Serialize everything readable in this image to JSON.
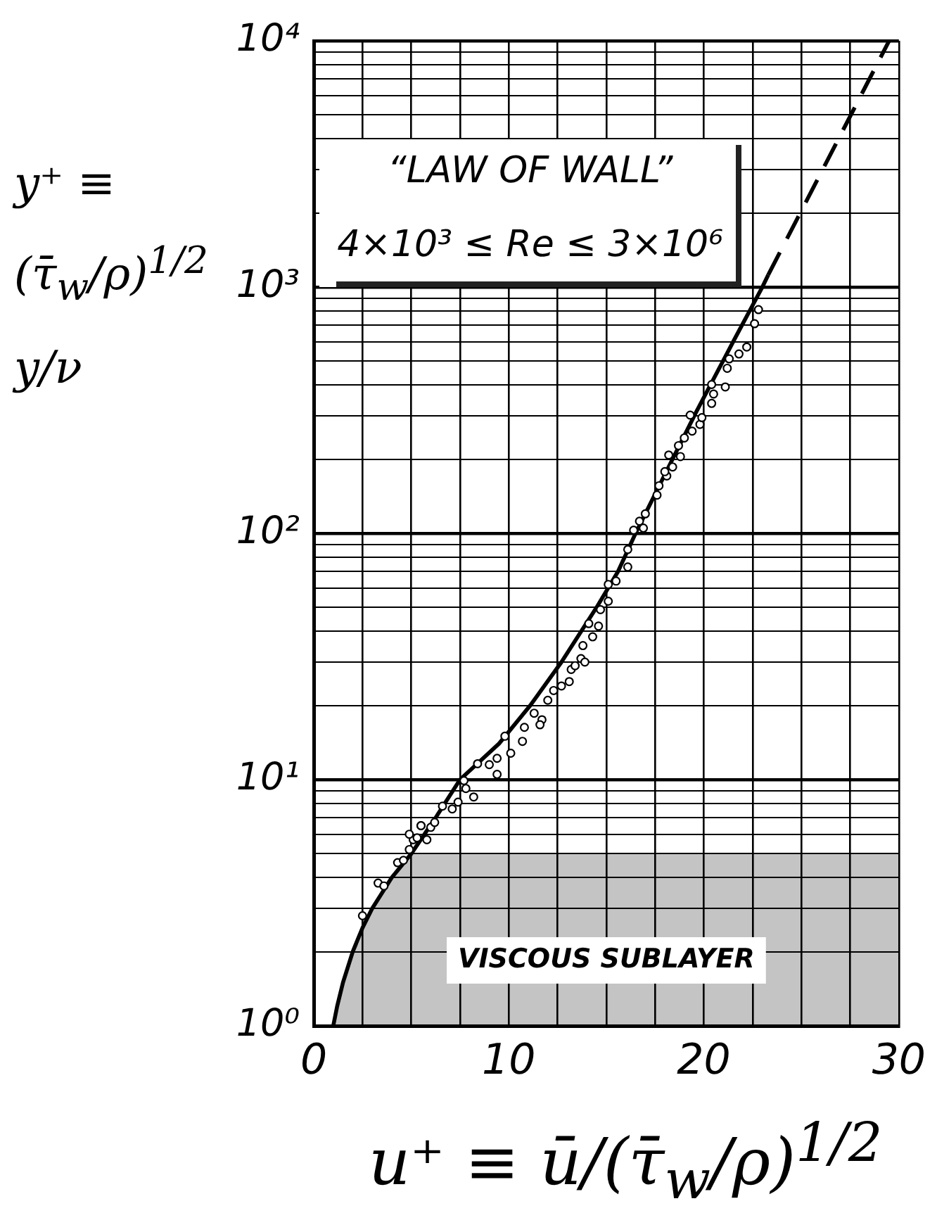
{
  "chart_data": {
    "type": "scatter",
    "ylabel": "y⁺ ≡ (τ̄$_{w}$/ρ)$^{1/2}$ y/ν",
    "xlabel": "u⁺ ≡ ū/(τ̄$_{w}$/ρ)$^{1/2}$",
    "annotations": [
      "“LAW OF WALL”",
      "4×10³ ≤ Re ≤ 3×10⁶"
    ],
    "xlim": [
      0,
      30
    ],
    "xticks": [
      0,
      {
        "value": 2.5,
        "label": null
      },
      {
        "value": 5,
        "label": null
      },
      {
        "value": 7.5,
        "label": null
      },
      10,
      {
        "value": 12.5,
        "label": null
      },
      {
        "value": 15,
        "label": null
      },
      {
        "value": 17.5,
        "label": null
      },
      20,
      {
        "value": 22.5,
        "label": null
      },
      {
        "value": 25,
        "label": null
      },
      {
        "value": 27.5,
        "label": null
      },
      30
    ],
    "ylim": [
      1,
      10000
    ],
    "yticks": [
      {
        "value": 1,
        "label": "10⁰"
      },
      {
        "value": 2,
        "label": null
      },
      {
        "value": 3,
        "label": null
      },
      {
        "value": 4,
        "label": null
      },
      {
        "value": 5,
        "label": null
      },
      {
        "value": 6,
        "label": null
      },
      {
        "value": 7,
        "label": null
      },
      {
        "value": 8,
        "label": null
      },
      {
        "value": 9,
        "label": null
      },
      {
        "value": 10,
        "label": "10¹"
      },
      {
        "value": 20,
        "label": null
      },
      {
        "value": 30,
        "label": null
      },
      {
        "value": 40,
        "label": null
      },
      {
        "value": 50,
        "label": null
      },
      {
        "value": 60,
        "label": null
      },
      {
        "value": 70,
        "label": null
      },
      {
        "value": 80,
        "label": null
      },
      {
        "value": 90,
        "label": null
      },
      {
        "value": 100,
        "label": "10²"
      },
      {
        "value": 200,
        "label": null
      },
      {
        "value": 300,
        "label": null
      },
      {
        "value": 400,
        "label": null
      },
      {
        "value": 500,
        "label": null
      },
      {
        "value": 600,
        "label": null
      },
      {
        "value": 700,
        "label": null
      },
      {
        "value": 800,
        "label": null
      },
      {
        "value": 900,
        "label": null
      },
      {
        "value": 1000,
        "label": "10³"
      },
      {
        "value": 2000,
        "label": null
      },
      {
        "value": 3000,
        "label": null
      },
      {
        "value": 4000,
        "label": null
      },
      {
        "value": 5000,
        "label": null
      },
      {
        "value": 6000,
        "label": null
      },
      {
        "value": 7000,
        "label": null
      },
      {
        "value": 8000,
        "label": null
      },
      {
        "value": 9000,
        "label": null
      },
      {
        "value": 10000,
        "label": "10⁴"
      }
    ],
    "log": "y",
    "grid": true,
    "legend": false,
    "bands": [
      {
        "axis": "y",
        "from": 1,
        "to": 5,
        "label": "VISCOUS SUBLAYER",
        "color": "#c4c4c4"
      }
    ],
    "series": [
      {
        "type": "scatter",
        "color": "#000000",
        "marker": "circle",
        "x": [
          2.5,
          3.3,
          3.6,
          4.3,
          4.6,
          4.9,
          5.1,
          5.3,
          5.8,
          5.5,
          4.9,
          6.0,
          5.5,
          6.2,
          6.6,
          7.1,
          7.7,
          7.8,
          8.2,
          7.4,
          8.4,
          9.0,
          9.4,
          9.4,
          9.8,
          10.1,
          10.7,
          10.8,
          11.3,
          11.7,
          11.6,
          12.0,
          12.3,
          12.7,
          13.1,
          13.2,
          13.4,
          13.7,
          13.9,
          13.8,
          14.3,
          14.1,
          14.6,
          14.7,
          15.1,
          15.1,
          15.5,
          16.1,
          16.1,
          16.4,
          16.9,
          16.7,
          17.0,
          17.6,
          17.7,
          18.1,
          18.4,
          18.0,
          18.2,
          18.8,
          18.7,
          19.0,
          19.4,
          19.8,
          19.3,
          19.9,
          20.4,
          20.5,
          20.4,
          21.1,
          21.2,
          21.3,
          21.8,
          22.2,
          22.6,
          22.8
        ],
        "values": [
          2.8,
          3.8,
          3.7,
          4.6,
          4.7,
          5.2,
          5.7,
          5.8,
          5.7,
          6.5,
          6.0,
          6.4,
          6.5,
          6.7,
          7.8,
          7.6,
          9.9,
          9.2,
          8.5,
          8.1,
          11.6,
          11.5,
          10.5,
          12.2,
          15,
          12.8,
          14.3,
          16.3,
          18.6,
          17.5,
          16.7,
          21,
          23,
          24,
          25,
          28,
          29,
          31,
          30,
          35,
          38,
          43,
          42,
          49,
          53,
          62,
          64,
          73,
          86,
          103,
          105,
          112,
          120,
          143,
          156,
          171,
          186,
          178,
          208,
          205,
          227,
          244,
          260,
          277,
          302,
          295,
          337,
          368,
          402,
          393,
          468,
          511,
          535,
          571,
          710,
          810
        ]
      },
      {
        "type": "line",
        "color": "#000000",
        "marker": "none",
        "line_style": "solid",
        "x": [
          1,
          1.2,
          1.5,
          2,
          2.5,
          3,
          4,
          5,
          6.3,
          7.5,
          9.5,
          11.1,
          12.7,
          14.5,
          15.6,
          16.5,
          17.9,
          19.6,
          21.6,
          23.0,
          23.3
        ],
        "values": [
          1,
          1.2,
          1.5,
          2,
          2.5,
          3,
          4,
          5,
          7.1,
          10,
          14,
          20,
          30,
          50,
          70,
          100,
          167,
          310,
          620,
          1000,
          1120
        ]
      },
      {
        "type": "line",
        "color": "#000000",
        "marker": "none",
        "line_style": "dashed",
        "x": [
          23.3,
          29.5
        ],
        "values": [
          1120,
          10000
        ]
      }
    ]
  }
}
